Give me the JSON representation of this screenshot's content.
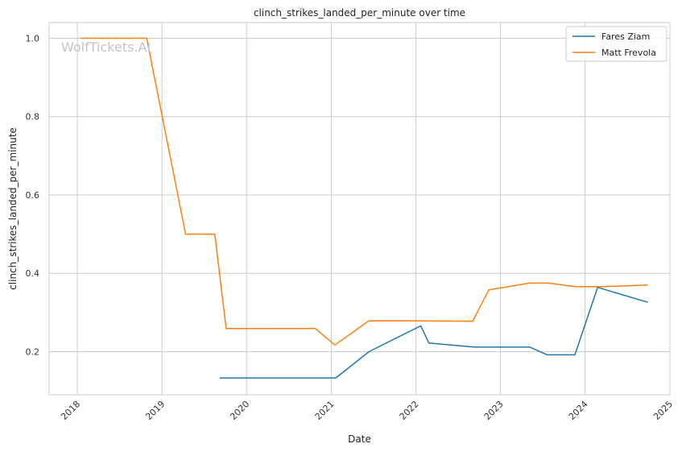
{
  "chart_data": {
    "type": "line",
    "title": "clinch_strikes_landed_per_minute over time",
    "xlabel": "Date",
    "ylabel": "clinch_strikes_landed_per_minute",
    "watermark": "WolfTickets.AI",
    "x_ticks": [
      "2018",
      "2019",
      "2020",
      "2021",
      "2022",
      "2023",
      "2024",
      "2025"
    ],
    "y_ticks": [
      "0.2",
      "0.4",
      "0.6",
      "0.8",
      "1.0"
    ],
    "xlim": [
      "2017-09-01",
      "2025-01-01"
    ],
    "ylim": [
      0.09,
      1.04
    ],
    "grid": true,
    "legend_position": "top-right",
    "series": [
      {
        "name": "Fares Ziam",
        "color": "#1f77b4",
        "points": [
          [
            "2019-09-07",
            0.133
          ],
          [
            "2021-01-20",
            0.133
          ],
          [
            "2021-06-12",
            0.2
          ],
          [
            "2022-01-22",
            0.266
          ],
          [
            "2022-02-26",
            0.222
          ],
          [
            "2022-09-10",
            0.212
          ],
          [
            "2023-05-06",
            0.212
          ],
          [
            "2023-07-22",
            0.192
          ],
          [
            "2023-11-18",
            0.192
          ],
          [
            "2024-02-24",
            0.364
          ],
          [
            "2024-09-28",
            0.326
          ]
        ]
      },
      {
        "name": "Matt Frevola",
        "color": "#ff7f0e",
        "points": [
          [
            "2018-01-14",
            1.0
          ],
          [
            "2018-10-27",
            1.0
          ],
          [
            "2019-04-13",
            0.5
          ],
          [
            "2019-08-17",
            0.5
          ],
          [
            "2019-10-05",
            0.259
          ],
          [
            "2020-10-24",
            0.259
          ],
          [
            "2021-01-16",
            0.217
          ],
          [
            "2021-06-12",
            0.279
          ],
          [
            "2022-09-03",
            0.278
          ],
          [
            "2022-11-12",
            0.358
          ],
          [
            "2023-05-06",
            0.375
          ],
          [
            "2023-07-29",
            0.375
          ],
          [
            "2023-11-18",
            0.366
          ],
          [
            "2024-03-16",
            0.366
          ],
          [
            "2024-09-28",
            0.37
          ]
        ]
      }
    ]
  }
}
